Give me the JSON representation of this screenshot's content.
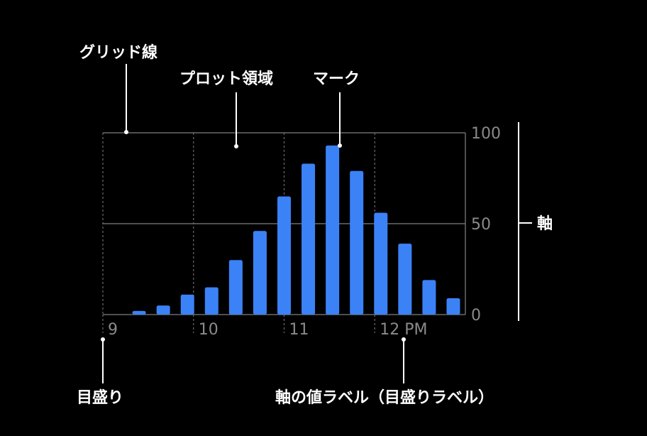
{
  "annotations": {
    "gridline": "グリッド線",
    "plot_area": "プロット領域",
    "mark": "マーク",
    "axis": "軸",
    "tick": "目盛り",
    "axis_value_label": "軸の値ラベル（目盛りラベル）"
  },
  "colors": {
    "bar": "#3b82f6",
    "grid": "#6b6b6b",
    "tick_text": "#8a8a8a",
    "annotation": "#ffffff"
  },
  "chart_data": {
    "type": "bar",
    "x_tick_labels": [
      "9",
      "10",
      "11",
      "12 PM"
    ],
    "y_tick_labels": [
      "100",
      "50",
      "0"
    ],
    "ylim": [
      0,
      100
    ],
    "values": [
      0,
      2,
      5,
      11,
      15,
      30,
      46,
      65,
      83,
      93,
      79,
      56,
      39,
      19,
      9
    ],
    "grid": true,
    "y_axis_position": "right"
  }
}
